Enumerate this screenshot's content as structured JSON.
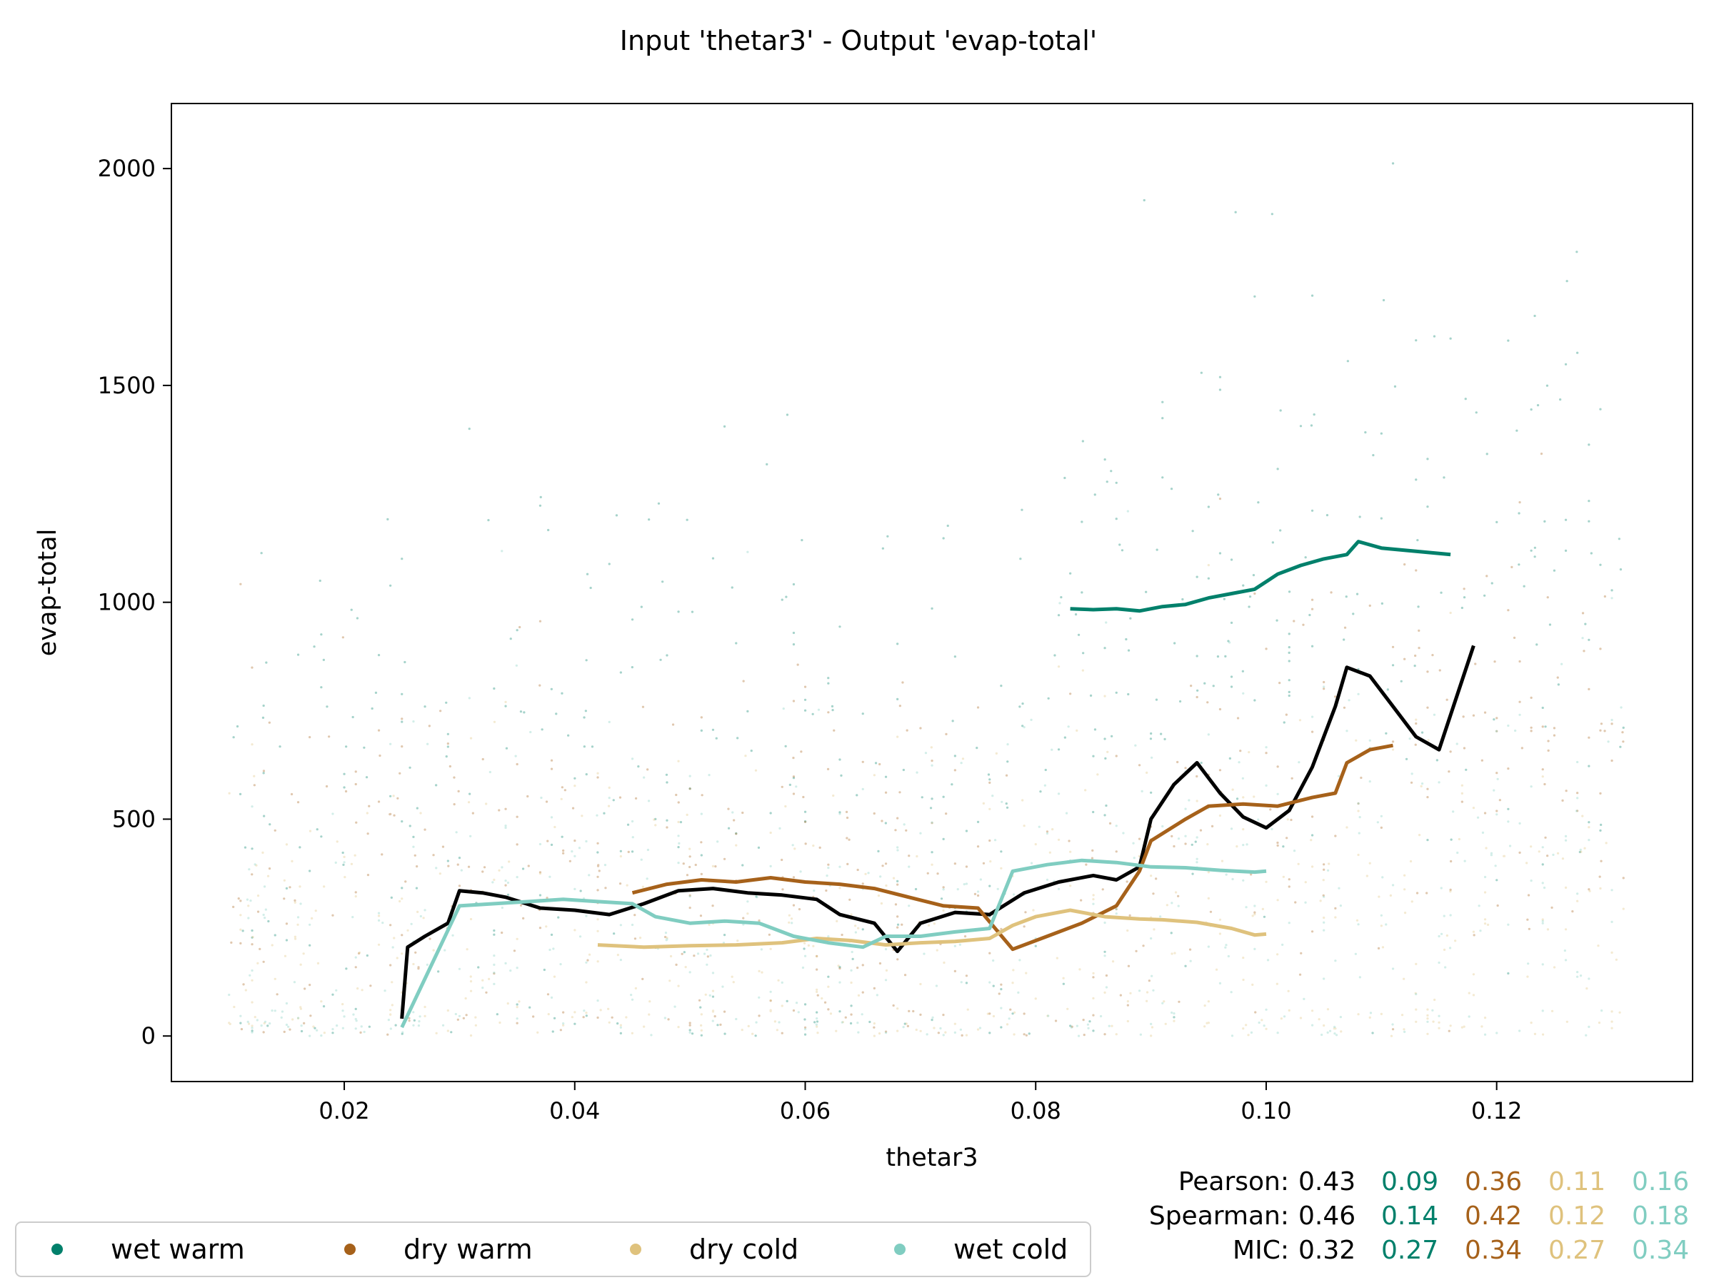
{
  "chart_data": {
    "type": "scatter",
    "title": "Input 'thetar3' - Output 'evap-total'",
    "xlabel": "thetar3",
    "ylabel": "evap-total",
    "xlim": [
      0.005,
      0.137
    ],
    "ylim": [
      -105,
      2150
    ],
    "xticks": [
      0.02,
      0.04,
      0.06,
      0.08,
      0.1,
      0.12
    ],
    "xtick_labels": [
      "0.02",
      "0.04",
      "0.06",
      "0.08",
      "0.10",
      "0.12"
    ],
    "yticks": [
      0,
      500,
      1000,
      1500,
      2000
    ],
    "ytick_labels": [
      "0",
      "500",
      "1000",
      "1500",
      "2000"
    ],
    "grid": false,
    "legend_position": "bottom-left",
    "colors": {
      "all": "#000000",
      "wet warm": "#01806b",
      "dry warm": "#a6611a",
      "dry cold": "#dfc27d",
      "wet cold": "#80cdc1"
    },
    "series": [
      {
        "name": "wet warm",
        "color": "#01806b",
        "trend": [
          [
            0.083,
            985
          ],
          [
            0.085,
            983
          ],
          [
            0.087,
            985
          ],
          [
            0.089,
            980
          ],
          [
            0.091,
            990
          ],
          [
            0.093,
            995
          ],
          [
            0.095,
            1010
          ],
          [
            0.097,
            1020
          ],
          [
            0.099,
            1030
          ],
          [
            0.101,
            1065
          ],
          [
            0.103,
            1085
          ],
          [
            0.105,
            1100
          ],
          [
            0.107,
            1110
          ],
          [
            0.108,
            1140
          ],
          [
            0.11,
            1125
          ],
          [
            0.112,
            1120
          ],
          [
            0.114,
            1115
          ],
          [
            0.116,
            1110
          ]
        ]
      },
      {
        "name": "dry warm",
        "color": "#a6611a",
        "trend": [
          [
            0.045,
            330
          ],
          [
            0.048,
            350
          ],
          [
            0.051,
            360
          ],
          [
            0.054,
            355
          ],
          [
            0.057,
            365
          ],
          [
            0.06,
            355
          ],
          [
            0.063,
            350
          ],
          [
            0.066,
            340
          ],
          [
            0.069,
            320
          ],
          [
            0.072,
            300
          ],
          [
            0.075,
            295
          ],
          [
            0.078,
            200
          ],
          [
            0.081,
            230
          ],
          [
            0.084,
            260
          ],
          [
            0.087,
            300
          ],
          [
            0.089,
            380
          ],
          [
            0.09,
            450
          ],
          [
            0.093,
            500
          ],
          [
            0.095,
            530
          ],
          [
            0.098,
            535
          ],
          [
            0.101,
            530
          ],
          [
            0.104,
            550
          ],
          [
            0.106,
            560
          ],
          [
            0.107,
            630
          ],
          [
            0.109,
            660
          ],
          [
            0.111,
            670
          ]
        ]
      },
      {
        "name": "dry cold",
        "color": "#dfc27d",
        "trend": [
          [
            0.042,
            210
          ],
          [
            0.046,
            205
          ],
          [
            0.05,
            208
          ],
          [
            0.054,
            210
          ],
          [
            0.058,
            215
          ],
          [
            0.061,
            225
          ],
          [
            0.064,
            220
          ],
          [
            0.067,
            210
          ],
          [
            0.07,
            215
          ],
          [
            0.073,
            218
          ],
          [
            0.076,
            225
          ],
          [
            0.078,
            255
          ],
          [
            0.08,
            275
          ],
          [
            0.083,
            290
          ],
          [
            0.086,
            275
          ],
          [
            0.089,
            270
          ],
          [
            0.091,
            268
          ],
          [
            0.094,
            262
          ],
          [
            0.097,
            248
          ],
          [
            0.099,
            233
          ],
          [
            0.1,
            235
          ]
        ]
      },
      {
        "name": "wet cold",
        "color": "#80cdc1",
        "trend": [
          [
            0.025,
            20
          ],
          [
            0.03,
            300
          ],
          [
            0.033,
            305
          ],
          [
            0.036,
            310
          ],
          [
            0.039,
            315
          ],
          [
            0.042,
            310
          ],
          [
            0.045,
            305
          ],
          [
            0.047,
            275
          ],
          [
            0.05,
            260
          ],
          [
            0.053,
            265
          ],
          [
            0.056,
            260
          ],
          [
            0.059,
            230
          ],
          [
            0.062,
            215
          ],
          [
            0.065,
            205
          ],
          [
            0.067,
            230
          ],
          [
            0.07,
            230
          ],
          [
            0.073,
            240
          ],
          [
            0.076,
            248
          ],
          [
            0.078,
            380
          ],
          [
            0.081,
            395
          ],
          [
            0.084,
            405
          ],
          [
            0.087,
            400
          ],
          [
            0.09,
            390
          ],
          [
            0.093,
            388
          ],
          [
            0.096,
            382
          ],
          [
            0.099,
            378
          ],
          [
            0.1,
            380
          ]
        ]
      }
    ],
    "overall_trend": {
      "name": "all",
      "color": "#000000",
      "points": [
        [
          0.025,
          40
        ],
        [
          0.0255,
          205
        ],
        [
          0.027,
          230
        ],
        [
          0.029,
          260
        ],
        [
          0.03,
          335
        ],
        [
          0.032,
          330
        ],
        [
          0.034,
          320
        ],
        [
          0.037,
          295
        ],
        [
          0.04,
          290
        ],
        [
          0.043,
          280
        ],
        [
          0.046,
          305
        ],
        [
          0.049,
          335
        ],
        [
          0.052,
          340
        ],
        [
          0.055,
          330
        ],
        [
          0.058,
          325
        ],
        [
          0.061,
          315
        ],
        [
          0.063,
          280
        ],
        [
          0.066,
          260
        ],
        [
          0.068,
          195
        ],
        [
          0.07,
          260
        ],
        [
          0.073,
          285
        ],
        [
          0.076,
          280
        ],
        [
          0.079,
          330
        ],
        [
          0.082,
          355
        ],
        [
          0.085,
          370
        ],
        [
          0.087,
          360
        ],
        [
          0.089,
          390
        ],
        [
          0.09,
          500
        ],
        [
          0.092,
          580
        ],
        [
          0.094,
          630
        ],
        [
          0.096,
          560
        ],
        [
          0.098,
          505
        ],
        [
          0.1,
          480
        ],
        [
          0.102,
          520
        ],
        [
          0.104,
          620
        ],
        [
          0.106,
          760
        ],
        [
          0.107,
          850
        ],
        [
          0.109,
          830
        ],
        [
          0.111,
          760
        ],
        [
          0.113,
          690
        ],
        [
          0.115,
          660
        ],
        [
          0.116,
          740
        ],
        [
          0.118,
          900
        ]
      ]
    },
    "legend": [
      "wet warm",
      "dry warm",
      "dry cold",
      "wet cold"
    ],
    "stats": [
      {
        "label": "Pearson:",
        "values": [
          "0.43",
          "0.09",
          "0.36",
          "0.11",
          "0.16"
        ]
      },
      {
        "label": "Spearman:",
        "values": [
          "0.46",
          "0.14",
          "0.42",
          "0.12",
          "0.18"
        ]
      },
      {
        "label": "MIC:",
        "values": [
          "0.32",
          "0.27",
          "0.34",
          "0.27",
          "0.34"
        ]
      }
    ]
  }
}
